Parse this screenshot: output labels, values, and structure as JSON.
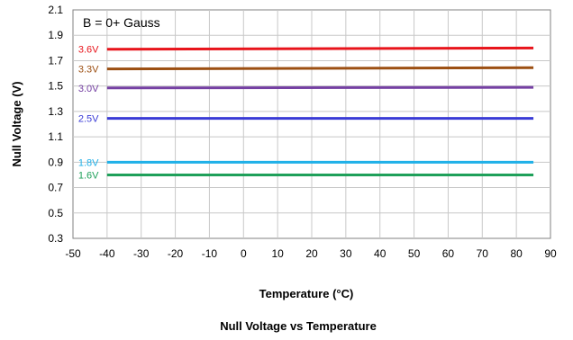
{
  "chart_data": {
    "type": "line",
    "title": "Null Voltage vs Temperature",
    "xlabel": "Temperature (°C)",
    "ylabel": "Null Voltage (V)",
    "annotation": "B = 0+ Gauss",
    "xlim": [
      -50,
      90
    ],
    "ylim": [
      0.3,
      2.1
    ],
    "xticks": [
      -50,
      -40,
      -30,
      -20,
      -10,
      0,
      10,
      20,
      30,
      40,
      50,
      60,
      70,
      80,
      90
    ],
    "yticks": [
      0.3,
      0.5,
      0.7,
      0.9,
      1.1,
      1.3,
      1.5,
      1.7,
      1.9,
      2.1
    ],
    "grid": true,
    "legend": "none",
    "series": [
      {
        "name": "3.6V",
        "color": "#e8141b",
        "x": [
          -40,
          85
        ],
        "y": [
          1.79,
          1.8
        ]
      },
      {
        "name": "3.3V",
        "color": "#9c4f12",
        "x": [
          -40,
          85
        ],
        "y": [
          1.635,
          1.645
        ]
      },
      {
        "name": "3.0V",
        "color": "#7540a3",
        "x": [
          -40,
          85
        ],
        "y": [
          1.485,
          1.49
        ]
      },
      {
        "name": "2.5V",
        "color": "#3a3bd6",
        "x": [
          -40,
          85
        ],
        "y": [
          1.245,
          1.245
        ]
      },
      {
        "name": "1.8V",
        "color": "#1fb0e8",
        "x": [
          -40,
          85
        ],
        "y": [
          0.9,
          0.9
        ]
      },
      {
        "name": "1.6V",
        "color": "#1fa05a",
        "x": [
          -40,
          85
        ],
        "y": [
          0.8,
          0.8
        ]
      }
    ]
  }
}
